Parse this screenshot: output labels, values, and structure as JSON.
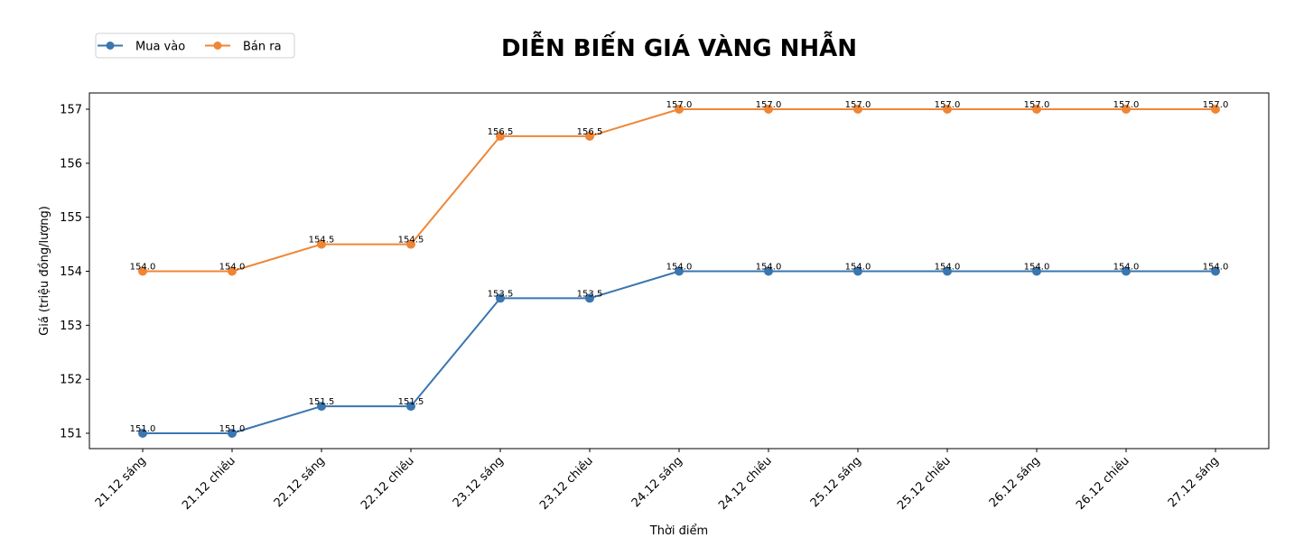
{
  "chart_data": {
    "type": "line",
    "title": "DIỄN BIẾN GIÁ VÀNG NHẪN",
    "xlabel": "Thời điểm",
    "ylabel": "Giá (triệu đồng/lượng)",
    "categories": [
      "21.12 sáng",
      "21.12 chiều",
      "22.12 sáng",
      "22.12 chiều",
      "23.12 sáng",
      "23.12 chiều",
      "24.12 sáng",
      "24.12 chiều",
      "25.12 sáng",
      "25.12 chiều",
      "26.12 sáng",
      "26.12 chiều",
      "27.12 sáng"
    ],
    "series": [
      {
        "name": "Mua vào",
        "color": "#3a76af",
        "values": [
          151.0,
          151.0,
          151.5,
          151.5,
          153.5,
          153.5,
          154.0,
          154.0,
          154.0,
          154.0,
          154.0,
          154.0,
          154.0
        ]
      },
      {
        "name": "Bán ra",
        "color": "#ef8636",
        "values": [
          154.0,
          154.0,
          154.5,
          154.5,
          156.5,
          156.5,
          157.0,
          157.0,
          157.0,
          157.0,
          157.0,
          157.0,
          157.0
        ]
      }
    ],
    "yticks": [
      151,
      152,
      153,
      154,
      155,
      156,
      157
    ],
    "ylim": [
      150.7,
      157.3
    ],
    "grid": false,
    "legend_position": "upper left (outside, above plot)",
    "data_labels": true
  }
}
